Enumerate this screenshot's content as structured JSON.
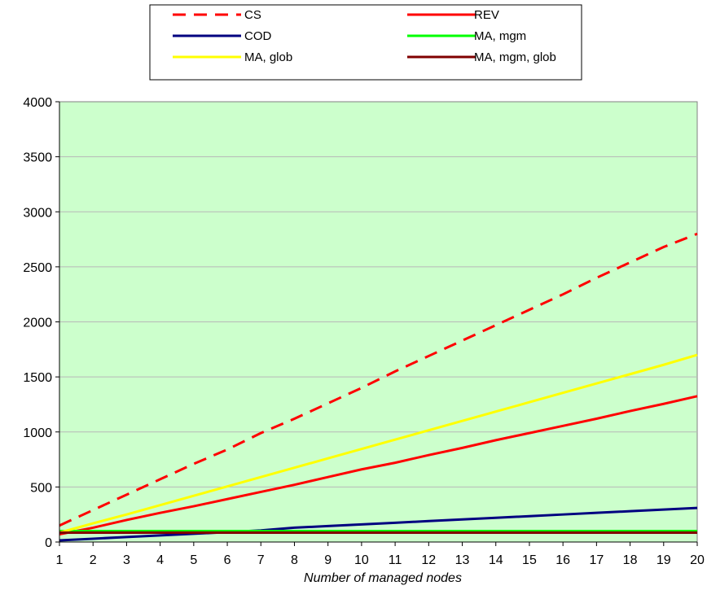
{
  "chart_data": {
    "type": "line",
    "xlabel": "Number of managed nodes",
    "ylabel": "",
    "x": [
      1,
      2,
      3,
      4,
      5,
      6,
      7,
      8,
      9,
      10,
      11,
      12,
      13,
      14,
      15,
      16,
      17,
      18,
      19,
      20
    ],
    "ylim": [
      0,
      4000
    ],
    "y_ticks": [
      0,
      500,
      1000,
      1500,
      2000,
      2500,
      3000,
      3500,
      4000
    ],
    "grid": true,
    "legend_position": "top",
    "plot_background": "#ccffcc",
    "series": [
      {
        "name": "CS",
        "color": "#ff0000",
        "dashed": true,
        "values": [
          150,
          290,
          430,
          570,
          710,
          840,
          990,
          1120,
          1260,
          1400,
          1550,
          1690,
          1830,
          1970,
          2110,
          2250,
          2400,
          2540,
          2680,
          2800
        ]
      },
      {
        "name": "REV",
        "color": "#ff0000",
        "dashed": false,
        "values": [
          70,
          130,
          200,
          265,
          325,
          390,
          455,
          520,
          590,
          660,
          720,
          790,
          855,
          925,
          990,
          1055,
          1120,
          1190,
          1255,
          1325
        ]
      },
      {
        "name": "COD",
        "color": "#000080",
        "dashed": false,
        "values": [
          15,
          30,
          45,
          60,
          75,
          90,
          105,
          130,
          145,
          160,
          175,
          190,
          205,
          220,
          235,
          250,
          265,
          280,
          295,
          310
        ]
      },
      {
        "name": "MA, mgm",
        "color": "#00ff00",
        "dashed": false,
        "values": [
          100,
          100,
          100,
          100,
          100,
          100,
          100,
          100,
          100,
          100,
          100,
          100,
          100,
          100,
          100,
          100,
          100,
          100,
          100,
          100
        ]
      },
      {
        "name": "MA, glob",
        "color": "#ffff00",
        "dashed": false,
        "values": [
          85,
          170,
          250,
          335,
          420,
          505,
          590,
          675,
          760,
          845,
          930,
          1015,
          1100,
          1185,
          1270,
          1355,
          1440,
          1525,
          1610,
          1700
        ]
      },
      {
        "name": "MA, mgm, glob",
        "color": "#800000",
        "dashed": false,
        "values": [
          85,
          85,
          85,
          85,
          85,
          85,
          85,
          85,
          85,
          85,
          85,
          85,
          85,
          85,
          85,
          85,
          85,
          85,
          85,
          85
        ]
      }
    ]
  }
}
